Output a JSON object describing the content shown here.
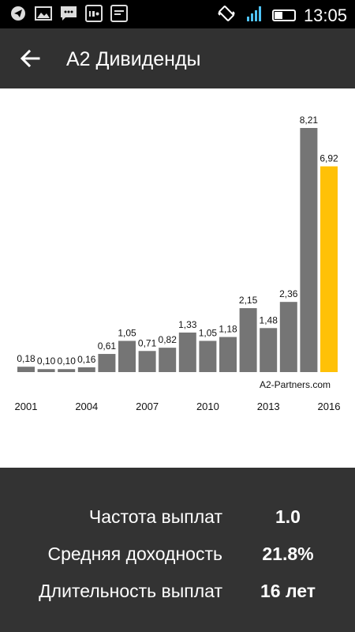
{
  "status_bar": {
    "time": "13:05",
    "left_icons": [
      "telegram-icon",
      "gallery-icon",
      "message-icon",
      "imo-icon",
      "app-icon"
    ],
    "right_icons": [
      "vibrate-icon",
      "signal-icon",
      "battery-icon"
    ]
  },
  "app_bar": {
    "back_icon": "arrow-back-icon",
    "title": "A2 Дивиденды"
  },
  "chart_data": {
    "type": "bar",
    "categories": [
      "2001",
      "2002",
      "2003",
      "2004",
      "2005",
      "2006",
      "2007",
      "2008",
      "2009",
      "2010",
      "2011",
      "2012",
      "2013",
      "2014",
      "2015",
      "2016"
    ],
    "values": [
      0.18,
      0.1,
      0.1,
      0.16,
      0.61,
      1.05,
      0.71,
      0.82,
      1.33,
      1.05,
      1.18,
      2.15,
      1.48,
      2.36,
      8.21,
      6.92
    ],
    "data_labels": [
      "0,18",
      "0,10",
      "0,10",
      "0,16",
      "0,61",
      "1,05",
      "0,71",
      "0,82",
      "1,33",
      "1,05",
      "1,18",
      "2,15",
      "1,48",
      "2,36",
      "8,21",
      "6,92"
    ],
    "x_tick_labels": [
      {
        "category": "2001",
        "label": "2001"
      },
      {
        "category": "2004",
        "label": "2004"
      },
      {
        "category": "2007",
        "label": "2007"
      },
      {
        "category": "2010",
        "label": "2010"
      },
      {
        "category": "2013",
        "label": "2013"
      },
      {
        "category": "2016",
        "label": "2016"
      }
    ],
    "ylim": [
      0,
      8.21
    ],
    "bar_color": "#757575",
    "highlight_color": "#FFC107",
    "highlight_category": "2016",
    "watermark": "A2-Partners.com",
    "grid": false
  },
  "stats": [
    {
      "label": "Частота выплат",
      "value": "1.0"
    },
    {
      "label": "Средняя доходность",
      "value": "21.8%"
    },
    {
      "label": "Длительность выплат",
      "value": "16 лет"
    }
  ]
}
